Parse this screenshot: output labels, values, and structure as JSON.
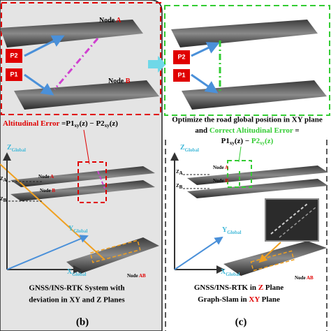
{
  "panel_b": {
    "top": {
      "node_a": {
        "word": "Node",
        "id": "A"
      },
      "p2": "P2",
      "p1": "P1",
      "node_b": {
        "word": "Node",
        "id": "B"
      }
    },
    "error": {
      "label": "Altitudinal Error",
      "eq": "=",
      "p1": "P1",
      "sub1": "xy",
      "arg1": "(z)",
      "minus": "−",
      "p2": "P2",
      "sub2": "xy",
      "arg2": "(z)"
    },
    "axes": {
      "z": {
        "letter": "Z",
        "sub": "Global"
      },
      "y": {
        "letter": "Y",
        "sub": "Global"
      },
      "x": {
        "letter": "X",
        "sub": "Global"
      },
      "za": {
        "letter": "Z",
        "sub": "A"
      },
      "zb": {
        "letter": "Z",
        "sub": "B"
      },
      "node_a": {
        "word": "Node",
        "id": "A"
      },
      "node_b": {
        "word": "Node",
        "id": "B"
      },
      "node_ab": {
        "word": "Node",
        "id": "AB"
      }
    },
    "caption": [
      "GNSS/INS-RTK System with",
      "deviation in XY and Z Planes"
    ],
    "tag": "(b)"
  },
  "panel_c": {
    "top": {
      "p2": "P2",
      "p1": "P1"
    },
    "text": {
      "line1": "Optimize the road global  position in XY plane",
      "and": "and",
      "correct": "Correct Altitudinal Error",
      "eq": "=",
      "p1": "P1",
      "sub1": "xy",
      "arg1": "(z)",
      "minus": "−",
      "p2": "P2",
      "sub2": "xy",
      "arg2": "(z)"
    },
    "axes": {
      "z": {
        "letter": "Z",
        "sub": "Global"
      },
      "y": {
        "letter": "Y",
        "sub": "Global"
      },
      "x": {
        "letter": "X",
        "sub": "Global"
      },
      "za": {
        "letter": "Z",
        "sub": "A"
      },
      "zb": {
        "letter": "Z",
        "sub": "B"
      },
      "node_a": {
        "word": "Node",
        "id": "A"
      },
      "node_b": {
        "word": "Node",
        "id": "B"
      },
      "node_ab": {
        "word": "Node",
        "id": "AB"
      }
    },
    "caption": [
      {
        "a": "GNSS/INS-RTK in",
        "b": "Z",
        "c": "Plane"
      },
      {
        "a": "Graph-Slam in",
        "b": "XY",
        "c": "Plane"
      }
    ],
    "tag": "(c)"
  }
}
